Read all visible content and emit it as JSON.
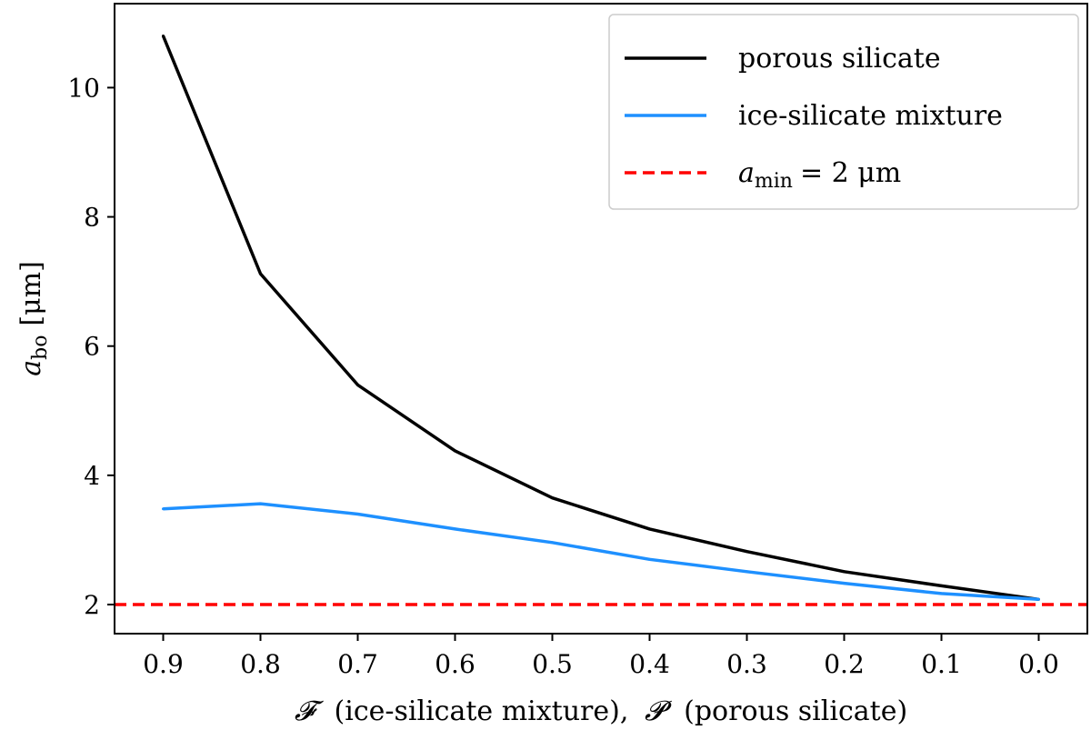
{
  "chart_data": {
    "type": "line",
    "x_reversed": true,
    "xlim": [
      0.95,
      -0.05
    ],
    "ylim": [
      1.55,
      11.3
    ],
    "x_ticks": [
      0.9,
      0.8,
      0.7,
      0.6,
      0.5,
      0.4,
      0.3,
      0.2,
      0.1,
      0.0
    ],
    "x_tick_labels": [
      "0.9",
      "0.8",
      "0.7",
      "0.6",
      "0.5",
      "0.4",
      "0.3",
      "0.2",
      "0.1",
      "0.0"
    ],
    "y_ticks": [
      2,
      4,
      6,
      8,
      10
    ],
    "y_tick_labels": [
      "2",
      "4",
      "6",
      "8",
      "10"
    ],
    "xlabel": {
      "symbol_f": "𝓕",
      "text_f": "(ice-silicate mixture),",
      "symbol_p": "𝓟",
      "text_p": "(porous silicate)"
    },
    "ylabel": {
      "var": "a",
      "sub": "bo",
      "unit": "[μm]"
    },
    "series": [
      {
        "name": "porous silicate",
        "color": "#000000",
        "style": "solid",
        "x": [
          0.9,
          0.8,
          0.7,
          0.6,
          0.5,
          0.4,
          0.3,
          0.2,
          0.1,
          0.0
        ],
        "values": [
          10.8,
          7.12,
          5.4,
          4.38,
          3.65,
          3.17,
          2.82,
          2.51,
          2.29,
          2.08
        ]
      },
      {
        "name": "ice-silicate mixture",
        "color": "#1e90ff",
        "style": "solid",
        "x": [
          0.9,
          0.8,
          0.7,
          0.6,
          0.5,
          0.4,
          0.3,
          0.2,
          0.1,
          0.0
        ],
        "values": [
          3.48,
          3.56,
          3.4,
          3.17,
          2.96,
          2.7,
          2.51,
          2.33,
          2.17,
          2.08
        ]
      }
    ],
    "reference_line": {
      "name": "amin = 2 μm",
      "var": "a",
      "sub": "min",
      "rest": "= 2 μm",
      "value": 2,
      "color": "#ff0000",
      "style": "dashed"
    },
    "legend_position": "top-right"
  }
}
